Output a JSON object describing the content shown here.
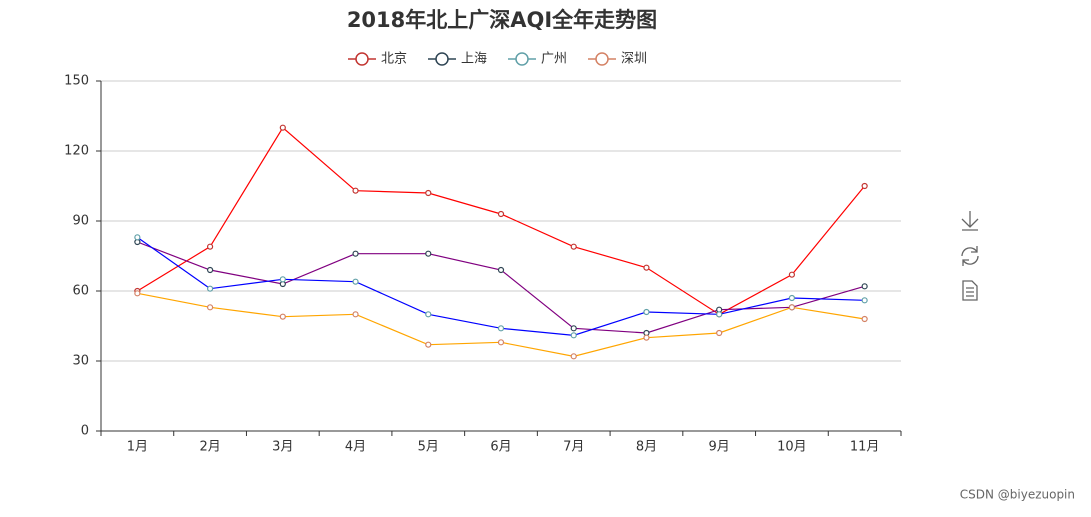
{
  "chart_data": {
    "type": "line",
    "title": "2018年北上广深AQI全年走势图",
    "categories": [
      "1月",
      "2月",
      "3月",
      "4月",
      "5月",
      "6月",
      "7月",
      "8月",
      "9月",
      "10月",
      "11月"
    ],
    "ylim": [
      0,
      150
    ],
    "yticks": [
      0,
      30,
      60,
      90,
      120,
      150
    ],
    "grid": true,
    "series": [
      {
        "name": "北京",
        "color": "#ff0000",
        "legend_color": "#c23531",
        "values": [
          60,
          79,
          130,
          103,
          102,
          93,
          79,
          70,
          50,
          67,
          105
        ]
      },
      {
        "name": "上海",
        "color": "#800080",
        "legend_color": "#2f4554",
        "values": [
          81,
          69,
          63,
          76,
          76,
          69,
          44,
          42,
          52,
          53,
          62
        ]
      },
      {
        "name": "广州",
        "color": "#0000ff",
        "legend_color": "#61a0a8",
        "values": [
          83,
          61,
          65,
          64,
          50,
          44,
          41,
          51,
          50,
          57,
          56
        ]
      },
      {
        "name": "深圳",
        "color": "#ffa500",
        "legend_color": "#d48265",
        "values": [
          59,
          53,
          49,
          50,
          37,
          38,
          32,
          40,
          42,
          53,
          48
        ]
      }
    ],
    "watermark": "CSDN @biyezuopin"
  }
}
